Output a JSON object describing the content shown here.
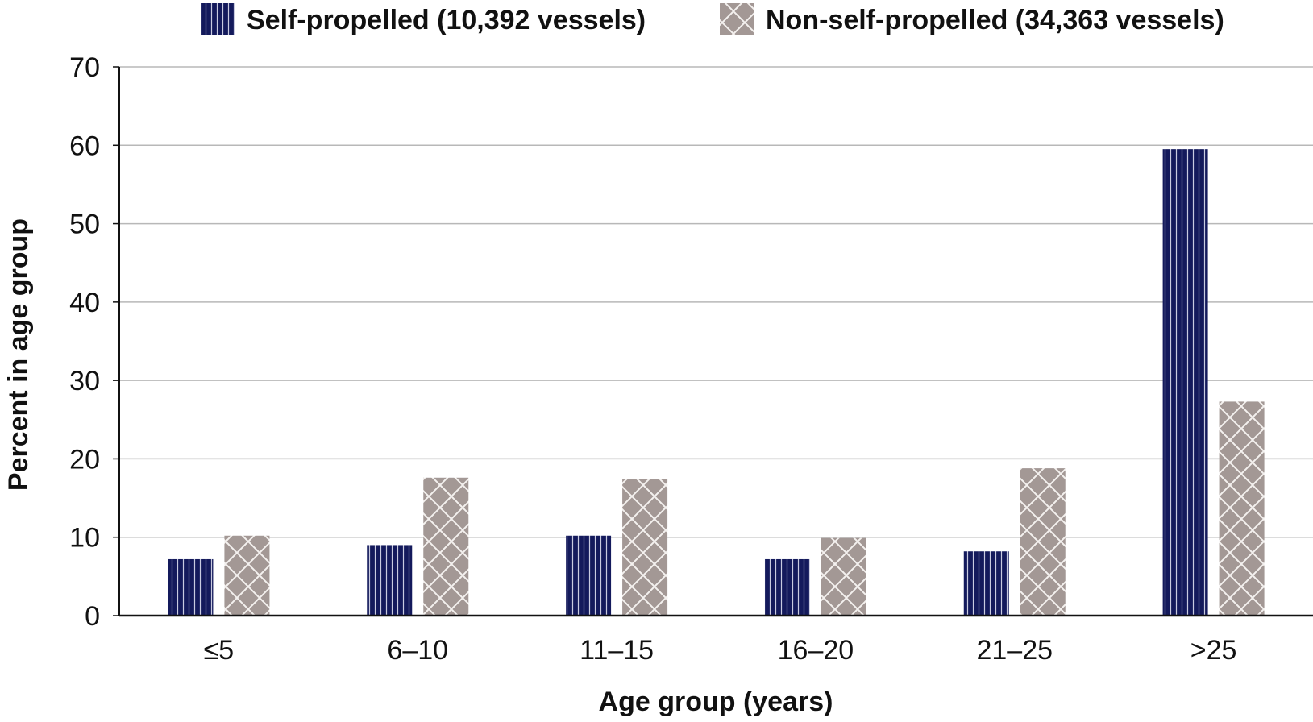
{
  "chart_data": {
    "type": "bar",
    "categories": [
      "≤5",
      "6–10",
      "11–15",
      "16–20",
      "21–25",
      ">25"
    ],
    "series": [
      {
        "name": "Self-propelled (10,392 vessels)",
        "values": [
          7.2,
          9.0,
          10.2,
          7.2,
          8.2,
          59.5
        ],
        "color": "#141a5c",
        "pattern": "vertical-stripes"
      },
      {
        "name": "Non-self-propelled (34,363 vessels)",
        "values": [
          10.2,
          17.6,
          17.4,
          9.9,
          18.8,
          27.3
        ],
        "color": "#a39895",
        "pattern": "diagonal-crosshatch"
      }
    ],
    "xlabel": "Age group (years)",
    "ylabel": "Percent in age group",
    "ylim": [
      0,
      70
    ],
    "yticks": [
      0,
      10,
      20,
      30,
      40,
      50,
      60,
      70
    ],
    "grid": true,
    "legend_position": "top-center"
  }
}
